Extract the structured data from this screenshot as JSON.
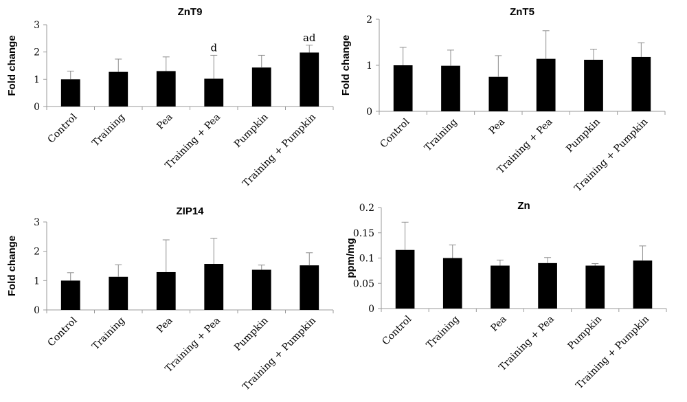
{
  "chart_data": [
    {
      "type": "bar",
      "title": "ZnT9",
      "ylabel": "Fold change",
      "categories": [
        "Control",
        "Training",
        "Pea",
        "Training + Pea",
        "Pumpkin",
        "Training + Pumpkin"
      ],
      "values": [
        1.0,
        1.27,
        1.3,
        1.02,
        1.43,
        1.98
      ],
      "errors": [
        0.3,
        0.47,
        0.52,
        0.86,
        0.45,
        0.27
      ],
      "annotations": [
        "",
        "",
        "",
        "d",
        "",
        "ad"
      ],
      "ylim": [
        0,
        3
      ],
      "yticks": [
        "0",
        "1",
        "2",
        "3"
      ],
      "grid": false,
      "legend": "none"
    },
    {
      "type": "bar",
      "title": "ZnT5",
      "ylabel": "Fold change",
      "categories": [
        "Control",
        "Training",
        "Pea",
        "Training + Pea",
        "Pumpkin",
        "Training + Pumpkin"
      ],
      "values": [
        1.0,
        0.99,
        0.75,
        1.14,
        1.12,
        1.18
      ],
      "errors": [
        0.39,
        0.34,
        0.46,
        0.61,
        0.23,
        0.31
      ],
      "annotations": [
        "",
        "",
        "",
        "",
        "",
        ""
      ],
      "ylim": [
        0,
        2
      ],
      "yticks": [
        "0",
        "1",
        "2"
      ],
      "grid": false,
      "legend": "none"
    },
    {
      "type": "bar",
      "title": "ZIP14",
      "ylabel": "Fold change",
      "categories": [
        "Control",
        "Training",
        "Pea",
        "Training + Pea",
        "Pumpkin",
        "Training + Pumpkin"
      ],
      "values": [
        1.0,
        1.13,
        1.29,
        1.57,
        1.37,
        1.52
      ],
      "errors": [
        0.27,
        0.41,
        1.1,
        0.87,
        0.16,
        0.43
      ],
      "annotations": [
        "",
        "",
        "",
        "",
        "",
        ""
      ],
      "ylim": [
        0,
        3
      ],
      "yticks": [
        "0",
        "1",
        "2",
        "3"
      ],
      "grid": false,
      "legend": "none"
    },
    {
      "type": "bar",
      "title": "Zn",
      "ylabel": "ppm/mg",
      "categories": [
        "Control",
        "Training",
        "Pea",
        "Training + Pea",
        "Pumpkin",
        "Training + Pumpkin"
      ],
      "values": [
        0.116,
        0.1,
        0.085,
        0.09,
        0.085,
        0.095
      ],
      "errors": [
        0.055,
        0.026,
        0.011,
        0.011,
        0.004,
        0.029
      ],
      "annotations": [
        "",
        "",
        "",
        "",
        "",
        ""
      ],
      "ylim": [
        0,
        0.2
      ],
      "yticks": [
        "0",
        "0.05",
        "0.1",
        "0.15",
        "0.2"
      ],
      "grid": false,
      "legend": "none"
    }
  ]
}
